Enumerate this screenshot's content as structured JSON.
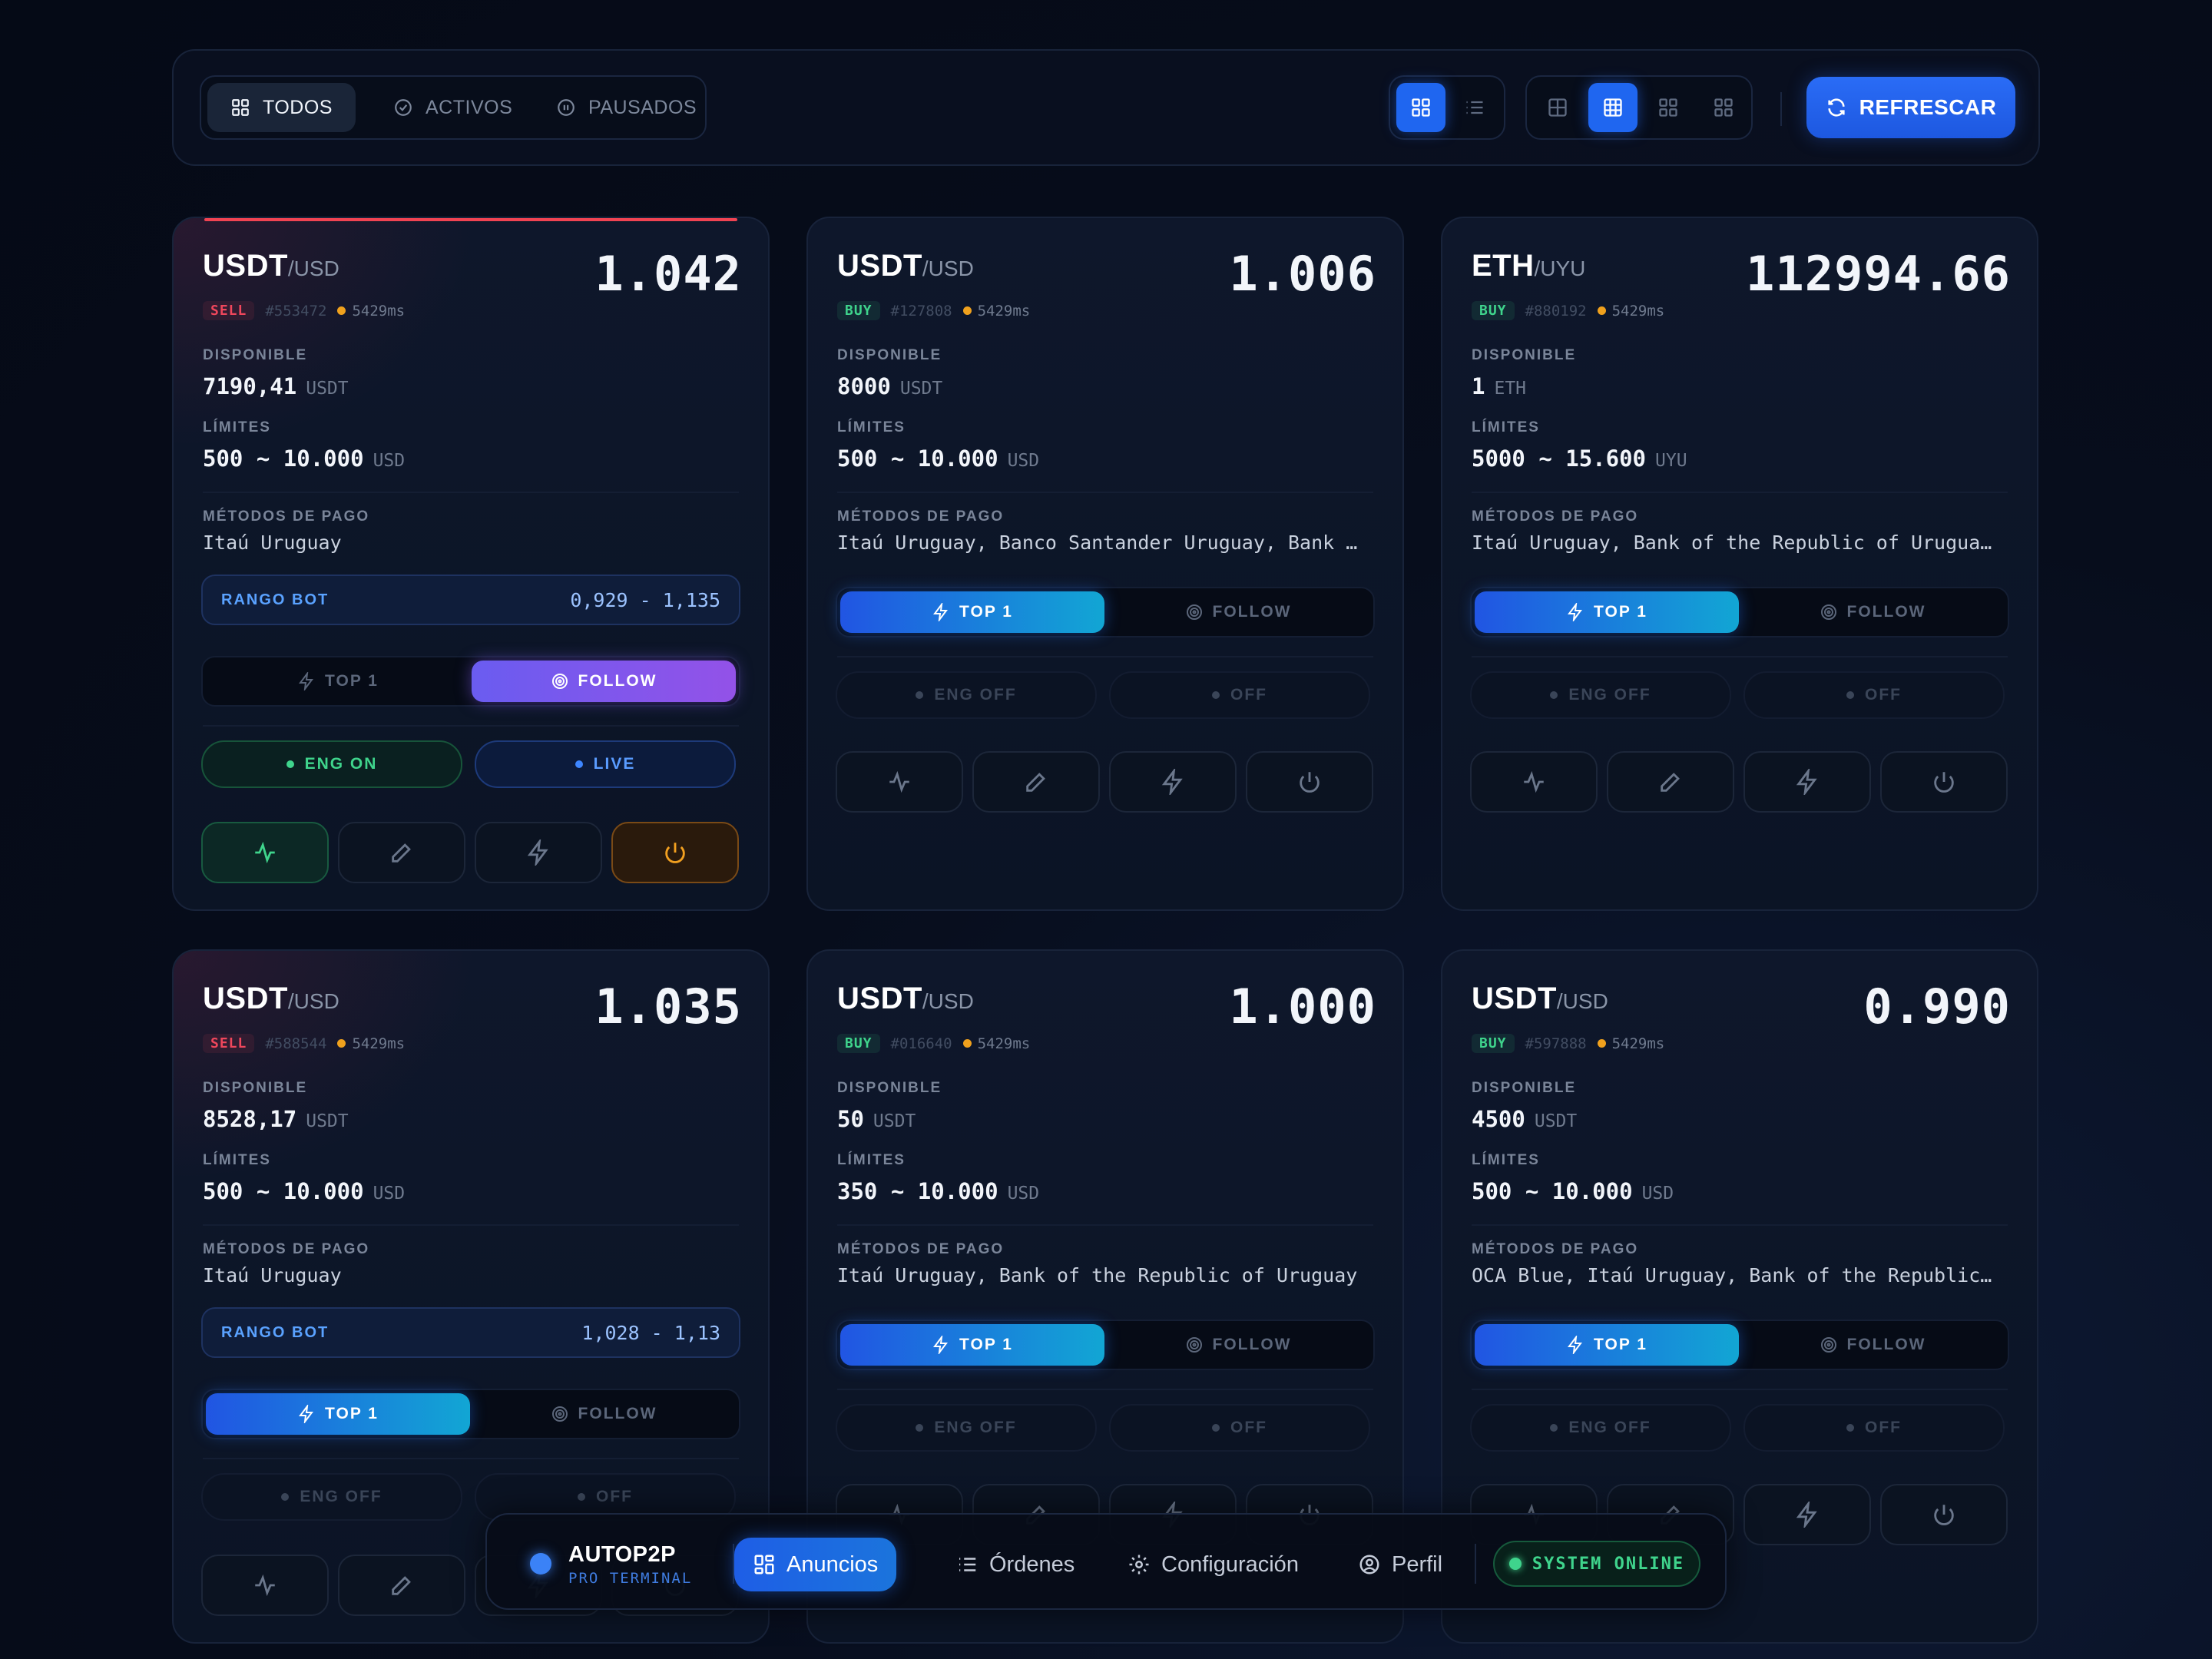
{
  "toolbar": {
    "filters": [
      {
        "label": "TODOS",
        "icon": "grid-icon",
        "active": true
      },
      {
        "label": "ACTIVOS",
        "icon": "check-circle-icon",
        "active": false
      },
      {
        "label": "PAUSADOS",
        "icon": "pause-circle-icon",
        "active": false
      }
    ],
    "refresh_label": "REFRESCAR"
  },
  "labels": {
    "disponible": "DISPONIBLE",
    "limites": "LÍMITES",
    "metodos": "MÉTODOS DE PAGO",
    "rango_bot": "RANGO BOT",
    "top1": "TOP 1",
    "follow": "FOLLOW",
    "eng_on": "ENG ON",
    "eng_off": "ENG OFF",
    "live": "LIVE",
    "off": "OFF",
    "tilde": "~"
  },
  "cards": [
    {
      "base": "USDT",
      "quote": "/USD",
      "price": "1.042",
      "side": "SELL",
      "id": "#553472",
      "latency": "5429ms",
      "available": "7190,41",
      "available_unit": "USDT",
      "limit_min": "500",
      "limit_max": "10.000",
      "limit_unit": "USD",
      "methods": "Itaú Uruguay",
      "range": "0,929 - 1,135"
    },
    {
      "base": "USDT",
      "quote": "/USD",
      "price": "1.006",
      "side": "BUY",
      "id": "#127808",
      "latency": "5429ms",
      "available": "8000",
      "available_unit": "USDT",
      "limit_min": "500",
      "limit_max": "10.000",
      "limit_unit": "USD",
      "methods": "Itaú Uruguay, Banco Santander Uruguay, Bank of t…"
    },
    {
      "base": "ETH",
      "quote": "/UYU",
      "price": "112994.66",
      "side": "BUY",
      "id": "#880192",
      "latency": "5429ms",
      "available": "1",
      "available_unit": "ETH",
      "limit_min": "5000",
      "limit_max": "15.600",
      "limit_unit": "UYU",
      "methods": "Itaú Uruguay, Bank of the Republic of Uruguay, B…"
    },
    {
      "base": "USDT",
      "quote": "/USD",
      "price": "1.035",
      "side": "SELL",
      "id": "#588544",
      "latency": "5429ms",
      "available": "8528,17",
      "available_unit": "USDT",
      "limit_min": "500",
      "limit_max": "10.000",
      "limit_unit": "USD",
      "methods": "Itaú Uruguay",
      "range": "1,028 - 1,13"
    },
    {
      "base": "USDT",
      "quote": "/USD",
      "price": "1.000",
      "side": "BUY",
      "id": "#016640",
      "latency": "5429ms",
      "available": "50",
      "available_unit": "USDT",
      "limit_min": "350",
      "limit_max": "10.000",
      "limit_unit": "USD",
      "methods": "Itaú Uruguay, Bank of the Republic of Uruguay"
    },
    {
      "base": "USDT",
      "quote": "/USD",
      "price": "0.990",
      "side": "BUY",
      "id": "#597888",
      "latency": "5429ms",
      "available": "4500",
      "available_unit": "USDT",
      "limit_min": "500",
      "limit_max": "10.000",
      "limit_unit": "USD",
      "methods": "OCA Blue, Itaú Uruguay, Bank of the Republic of …"
    }
  ],
  "nav": {
    "brand": "AUTOP2P",
    "brand_sub": "PRO TERMINAL",
    "items": [
      {
        "label": "Anuncios",
        "icon": "grid-icon",
        "active": true
      },
      {
        "label": "Órdenes",
        "icon": "list-icon",
        "active": false
      },
      {
        "label": "Configuración",
        "icon": "gear-icon",
        "active": false
      },
      {
        "label": "Perfil",
        "icon": "user-circle-icon",
        "active": false
      }
    ],
    "status": "SYSTEM ONLINE"
  },
  "colors": {
    "accent": "#1f66f0",
    "sell": "#f0475c",
    "buy": "#3fd48c",
    "warn": "#f0a11d"
  }
}
